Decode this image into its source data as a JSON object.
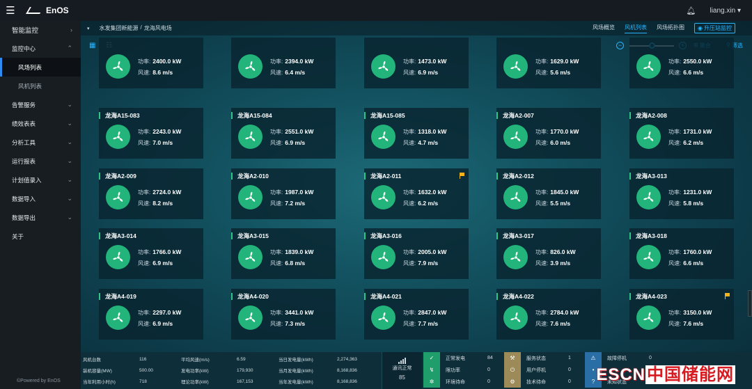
{
  "app": {
    "logo_text": "EnOS",
    "user": "liang.xin"
  },
  "sidebar": {
    "top": "智能监控",
    "items": [
      {
        "label": "监控中心",
        "type": "section",
        "chev": "up"
      },
      {
        "label": "风场列表",
        "type": "sub",
        "active": true
      },
      {
        "label": "风机列表",
        "type": "sub"
      },
      {
        "label": "告警服务",
        "type": "section",
        "chev": "down"
      },
      {
        "label": "绩效表表",
        "type": "section",
        "chev": "down"
      },
      {
        "label": "分析工具",
        "type": "section",
        "chev": "down"
      },
      {
        "label": "运行报表",
        "type": "section",
        "chev": "down"
      },
      {
        "label": "计划值录入",
        "type": "section",
        "chev": "down"
      },
      {
        "label": "数据导入",
        "type": "section",
        "chev": "down"
      },
      {
        "label": "数据导出",
        "type": "section",
        "chev": "down"
      },
      {
        "label": "关于",
        "type": "section",
        "chev": ""
      }
    ],
    "powered": "©Powered by EnOS"
  },
  "navbar": {
    "breadcrumb": [
      "水发集团新能源",
      "/",
      "龙海风电场"
    ],
    "tabs": [
      {
        "label": "风场概览",
        "active": false
      },
      {
        "label": "风机列表",
        "active": true
      },
      {
        "label": "风场拓扑图",
        "active": false
      }
    ],
    "upgrade": "升压站监控"
  },
  "toolbar": {
    "group_label": "聚合",
    "filter_label": "筛选"
  },
  "cards": [
    {
      "name": "",
      "power": "2400.0 kW",
      "wind": "8.6 m/s",
      "flag": false
    },
    {
      "name": "",
      "power": "2394.0 kW",
      "wind": "6.4 m/s",
      "flag": false
    },
    {
      "name": "",
      "power": "1473.0 kW",
      "wind": "6.9 m/s",
      "flag": false
    },
    {
      "name": "",
      "power": "1629.0 kW",
      "wind": "5.6 m/s",
      "flag": false
    },
    {
      "name": "",
      "power": "2550.0 kW",
      "wind": "6.6 m/s",
      "flag": false
    },
    {
      "name": "龙海A15-083",
      "power": "2243.0 kW",
      "wind": "7.0 m/s",
      "flag": false
    },
    {
      "name": "龙海A15-084",
      "power": "2551.0 kW",
      "wind": "6.9 m/s",
      "flag": false
    },
    {
      "name": "龙海A15-085",
      "power": "1318.0 kW",
      "wind": "4.7 m/s",
      "flag": false
    },
    {
      "name": "龙海A2-007",
      "power": "1770.0 kW",
      "wind": "6.0 m/s",
      "flag": false
    },
    {
      "name": "龙海A2-008",
      "power": "1731.0 kW",
      "wind": "6.2 m/s",
      "flag": false
    },
    {
      "name": "龙海A2-009",
      "power": "2724.0 kW",
      "wind": "8.2 m/s",
      "flag": false
    },
    {
      "name": "龙海A2-010",
      "power": "1987.0 kW",
      "wind": "7.2 m/s",
      "flag": false
    },
    {
      "name": "龙海A2-011",
      "power": "1632.0 kW",
      "wind": "6.2 m/s",
      "flag": true
    },
    {
      "name": "龙海A2-012",
      "power": "1845.0 kW",
      "wind": "5.5 m/s",
      "flag": false
    },
    {
      "name": "龙海A3-013",
      "power": "1231.0 kW",
      "wind": "5.8 m/s",
      "flag": false
    },
    {
      "name": "龙海A3-014",
      "power": "1766.0 kW",
      "wind": "6.9 m/s",
      "flag": false
    },
    {
      "name": "龙海A3-015",
      "power": "1839.0 kW",
      "wind": "6.8 m/s",
      "flag": false
    },
    {
      "name": "龙海A3-016",
      "power": "2005.0 kW",
      "wind": "7.9 m/s",
      "flag": false
    },
    {
      "name": "龙海A3-017",
      "power": "826.0 kW",
      "wind": "3.9 m/s",
      "flag": false
    },
    {
      "name": "龙海A3-018",
      "power": "1760.0 kW",
      "wind": "6.6 m/s",
      "flag": false
    },
    {
      "name": "龙海A4-019",
      "power": "2297.0 kW",
      "wind": "6.9 m/s",
      "flag": false
    },
    {
      "name": "龙海A4-020",
      "power": "3441.0 kW",
      "wind": "7.3 m/s",
      "flag": false
    },
    {
      "name": "龙海A4-021",
      "power": "2847.0 kW",
      "wind": "7.7 m/s",
      "flag": false
    },
    {
      "name": "龙海A4-022",
      "power": "2784.0 kW",
      "wind": "7.6 m/s",
      "flag": false
    },
    {
      "name": "龙海A4-023",
      "power": "3150.0 kW",
      "wind": "7.6 m/s",
      "flag": true
    }
  ],
  "card_labels": {
    "power": "功率:",
    "wind": "风速:"
  },
  "stats": {
    "rows": [
      [
        "风机台数",
        "116",
        "平均风速(m/s)",
        "6.59",
        "当日发电量(kWh)",
        "2,274,363"
      ],
      [
        "装机容量(MW)",
        "500.00",
        "发电功率(kW)",
        "179,930",
        "当月发电量(kWh)",
        "8,168,836"
      ],
      [
        "当年利用小时(h)",
        "718",
        "理论功率(kW)",
        "167,153",
        "当年发电量(kWh)",
        "8,168,836"
      ]
    ],
    "comm": {
      "label": "通讯正常",
      "value": "85"
    },
    "status_a": [
      {
        "label": "正常发电",
        "value": "84"
      },
      {
        "label": "限功率",
        "value": "0"
      },
      {
        "label": "环境待命",
        "value": "0"
      }
    ],
    "status_b": [
      {
        "label": "服务状态",
        "value": "1"
      },
      {
        "label": "用户停机",
        "value": "0"
      },
      {
        "label": "技术待命",
        "value": "0"
      }
    ],
    "status_c": [
      {
        "label": "故障停机",
        "value": "0"
      },
      {
        "label": "",
        "value": "0"
      },
      {
        "label": "未知状态",
        "value": "0"
      }
    ]
  },
  "watermark": {
    "latin": "ESCN",
    "cn": "中国储能网"
  }
}
